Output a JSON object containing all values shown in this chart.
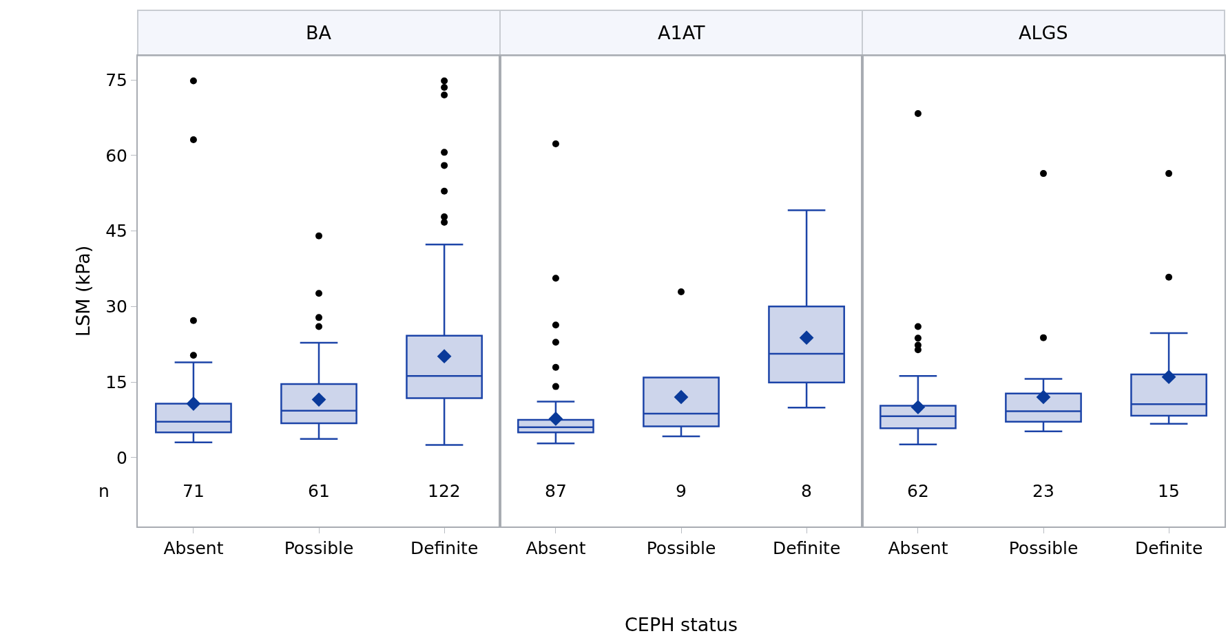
{
  "chart_data": [
    {
      "type": "box",
      "title": "BA",
      "ylabel": "LSM (kPa)",
      "color": "#1c44a8",
      "categories": [
        "Absent",
        "Possible",
        "Definite"
      ],
      "ylim": [
        -13.7,
        79.8
      ],
      "yticks": [
        0,
        15,
        30,
        45,
        60,
        75
      ],
      "grid": false,
      "legend": false,
      "marker": "diamond",
      "boxes": [
        {
          "low": 3.0,
          "q1": 5.0,
          "median": 7.1,
          "q3": 10.7,
          "high": 18.9,
          "mean": 10.7,
          "outliers": [
            20.3,
            27.2,
            63.1,
            74.8
          ]
        },
        {
          "low": 3.7,
          "q1": 6.8,
          "median": 9.3,
          "q3": 14.6,
          "high": 22.8,
          "mean": 11.5,
          "outliers": [
            26.0,
            27.8,
            32.6,
            44.0
          ]
        },
        {
          "low": 2.5,
          "q1": 11.8,
          "median": 16.2,
          "q3": 24.2,
          "high": 42.3,
          "mean": 20.1,
          "outliers": [
            46.7,
            47.8,
            52.9,
            58.0,
            60.6,
            72.0,
            73.5,
            74.8
          ]
        }
      ],
      "annotations": [
        "n",
        "71",
        "61",
        "122"
      ]
    },
    {
      "type": "box",
      "title": "A1AT",
      "xlabel": "CEPH status",
      "color": "#1c44a8",
      "categories": [
        "Absent",
        "Possible",
        "Definite"
      ],
      "ylim": [
        -13.7,
        79.8
      ],
      "tick_labels": "x",
      "grid": false,
      "legend": false,
      "marker": "diamond",
      "boxes": [
        {
          "low": 2.8,
          "q1": 5.0,
          "median": 6.0,
          "q3": 7.5,
          "high": 11.1,
          "mean": 7.7,
          "outliers": [
            14.1,
            17.9,
            22.9,
            26.3,
            35.6,
            62.3
          ]
        },
        {
          "low": 4.2,
          "q1": 6.2,
          "median": 8.7,
          "q3": 15.9,
          "high": 15.9,
          "mean": 12.0,
          "outliers": [
            32.9
          ]
        },
        {
          "low": 9.9,
          "q1": 14.9,
          "median": 20.6,
          "q3": 30.0,
          "high": 49.1,
          "mean": 23.8
        }
      ],
      "annotations": [
        "87",
        "9",
        "8"
      ]
    },
    {
      "type": "box",
      "title": "ALGS",
      "color": "#1c44a8",
      "categories": [
        "Absent",
        "Possible",
        "Definite"
      ],
      "ylim": [
        -13.7,
        79.8
      ],
      "tick_labels": "x",
      "grid": false,
      "legend": false,
      "marker": "diamond",
      "boxes": [
        {
          "low": 2.6,
          "q1": 5.8,
          "median": 8.2,
          "q3": 10.3,
          "high": 16.2,
          "mean": 10.0,
          "outliers": [
            21.4,
            22.3,
            23.7,
            26.0,
            68.3
          ]
        },
        {
          "low": 5.2,
          "q1": 7.1,
          "median": 9.2,
          "q3": 12.7,
          "high": 15.6,
          "mean": 12.0,
          "outliers": [
            23.8,
            56.4
          ]
        },
        {
          "low": 6.7,
          "q1": 8.3,
          "median": 10.6,
          "q3": 16.5,
          "high": 24.7,
          "mean": 16.0,
          "outliers": [
            35.8,
            56.4
          ]
        }
      ],
      "annotations": [
        "62",
        "23",
        "15"
      ]
    }
  ]
}
